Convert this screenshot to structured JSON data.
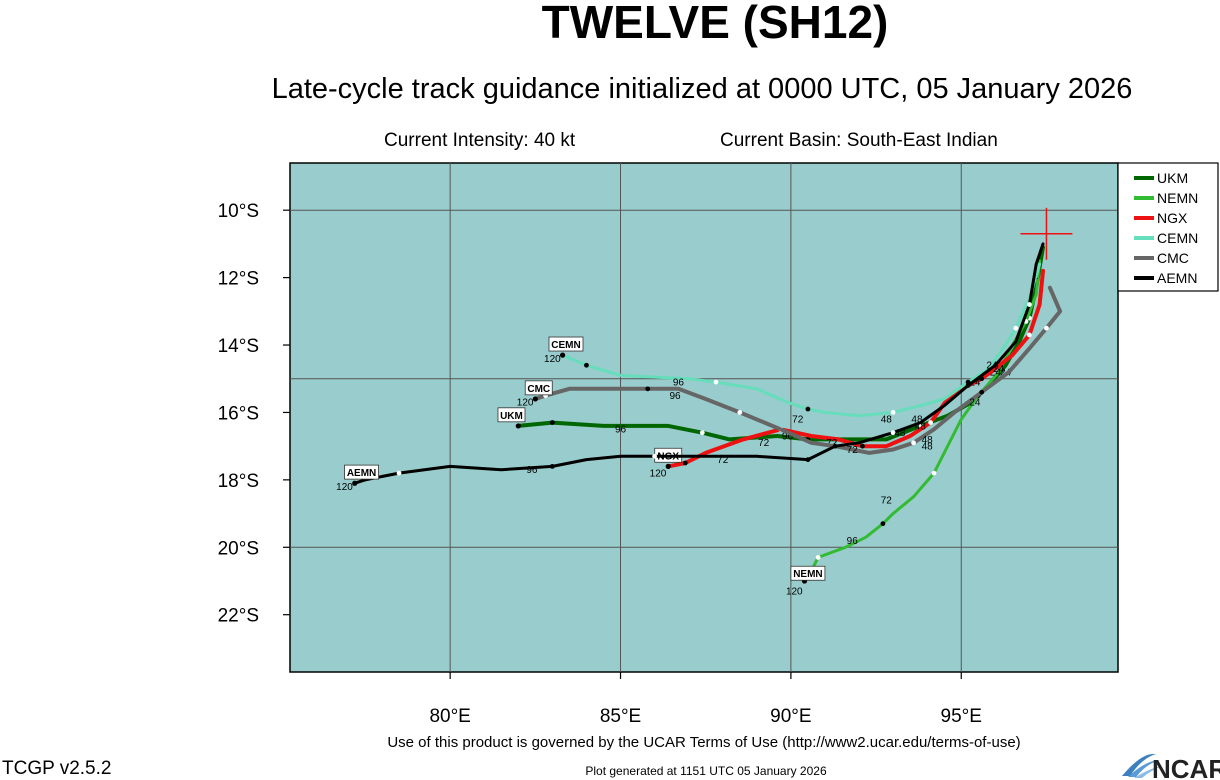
{
  "header": {
    "title": "TWELVE (SH12)",
    "subtitle": "Late-cycle track guidance initialized at 0000 UTC, 05 January 2026",
    "intensity": "Current Intensity: 40 kt",
    "basin": "Current Basin: South-East Indian"
  },
  "map": {
    "background_color": "#99cccc",
    "lon_range": [
      75.3,
      99.6
    ],
    "lat_range": [
      -23.7,
      -8.6
    ],
    "lon_ticks": [
      {
        "value": 80,
        "label": "80°E"
      },
      {
        "value": 85,
        "label": "85°E"
      },
      {
        "value": 90,
        "label": "90°E"
      },
      {
        "value": 95,
        "label": "95°E"
      }
    ],
    "lat_ticks": [
      {
        "value": -10,
        "label": "10°S"
      },
      {
        "value": -12,
        "label": "12°S"
      },
      {
        "value": -14,
        "label": "14°S"
      },
      {
        "value": -16,
        "label": "16°S"
      },
      {
        "value": -18,
        "label": "18°S"
      },
      {
        "value": -20,
        "label": "20°S"
      },
      {
        "value": -22,
        "label": "22°S"
      }
    ],
    "grid_lons": [
      80,
      85,
      90,
      95
    ],
    "grid_lats": [
      -10,
      -15,
      -20
    ],
    "current_position": {
      "lon": 97.5,
      "lat": -10.7
    },
    "storm_glyph": {
      "lon": 97.2,
      "lat": -12.2
    }
  },
  "legend": {
    "items": [
      {
        "name": "UKM",
        "color": "#006600"
      },
      {
        "name": "NEMN",
        "color": "#33bb33"
      },
      {
        "name": "NGX",
        "color": "#ee1111"
      },
      {
        "name": "CEMN",
        "color": "#66ddbb"
      },
      {
        "name": "CMC",
        "color": "#666666"
      },
      {
        "name": "AEMN",
        "color": "#000000"
      }
    ]
  },
  "chart_data": {
    "type": "line",
    "x_label": "",
    "y_label": "",
    "series": [
      {
        "name": "UKM",
        "color": "#006600",
        "width": 4,
        "points": [
          [
            97.4,
            -11.1
          ],
          [
            97.2,
            -12.3
          ],
          [
            97.0,
            -13.2
          ],
          [
            96.7,
            -13.9
          ],
          [
            96.3,
            -14.6
          ],
          [
            95.8,
            -15.2
          ],
          [
            95.3,
            -15.7
          ],
          [
            94.6,
            -16.1
          ],
          [
            93.8,
            -16.4
          ],
          [
            92.8,
            -16.8
          ],
          [
            91.6,
            -16.8
          ],
          [
            90.5,
            -16.8
          ],
          [
            89.6,
            -16.7
          ],
          [
            88.2,
            -16.8
          ],
          [
            87.4,
            -16.6
          ],
          [
            86.4,
            -16.4
          ],
          [
            84.5,
            -16.4
          ],
          [
            83.0,
            -16.3
          ],
          [
            82.0,
            -16.4
          ]
        ],
        "labels": [
          {
            "text": "24",
            "lon": 96.3,
            "lat": -14.9
          },
          {
            "text": "48",
            "lon": 93.7,
            "lat": -16.3
          },
          {
            "text": "72",
            "lon": 89.2,
            "lat": -17.0
          },
          {
            "text": "96",
            "lon": 85.0,
            "lat": -16.6
          }
        ],
        "end_label": {
          "text": "UKM",
          "lon": 81.8,
          "lat": -16.1
        },
        "end_num": {
          "text": "",
          "lon": 0,
          "lat": 0
        }
      },
      {
        "name": "NEMN",
        "color": "#33bb33",
        "width": 3,
        "points": [
          [
            97.3,
            -11.5
          ],
          [
            97.2,
            -12.5
          ],
          [
            96.9,
            -13.3
          ],
          [
            96.5,
            -14.0
          ],
          [
            96.1,
            -14.8
          ],
          [
            95.5,
            -15.5
          ],
          [
            95.0,
            -16.2
          ],
          [
            94.6,
            -17.0
          ],
          [
            94.2,
            -17.8
          ],
          [
            93.6,
            -18.5
          ],
          [
            93.0,
            -19.0
          ],
          [
            92.7,
            -19.3
          ],
          [
            92.2,
            -19.7
          ],
          [
            91.6,
            -20.0
          ],
          [
            90.8,
            -20.3
          ],
          [
            90.6,
            -20.7
          ],
          [
            90.4,
            -21.0
          ]
        ],
        "labels": [
          {
            "text": "24",
            "lon": 96.0,
            "lat": -14.9
          },
          {
            "text": "48",
            "lon": 94.0,
            "lat": -17.1
          },
          {
            "text": "72",
            "lon": 92.8,
            "lat": -18.7
          },
          {
            "text": "96",
            "lon": 91.8,
            "lat": -19.9
          }
        ],
        "end_label": {
          "text": "NEMN",
          "lon": 90.5,
          "lat": -20.8
        },
        "end_num": {
          "text": "120",
          "lon": 90.1,
          "lat": -21.4
        }
      },
      {
        "name": "NGX",
        "color": "#ee1111",
        "width": 4,
        "points": [
          [
            97.4,
            -11.8
          ],
          [
            97.3,
            -12.8
          ],
          [
            97.0,
            -13.7
          ],
          [
            96.5,
            -14.3
          ],
          [
            96.0,
            -14.7
          ],
          [
            95.6,
            -15.0
          ],
          [
            95.0,
            -15.3
          ],
          [
            94.6,
            -15.6
          ],
          [
            94.1,
            -16.3
          ],
          [
            93.5,
            -16.7
          ],
          [
            92.8,
            -17.0
          ],
          [
            92.1,
            -17.0
          ],
          [
            91.4,
            -16.8
          ],
          [
            90.6,
            -16.7
          ],
          [
            89.7,
            -16.5
          ],
          [
            88.6,
            -16.8
          ],
          [
            87.5,
            -17.2
          ],
          [
            86.9,
            -17.5
          ],
          [
            86.4,
            -17.6
          ]
        ],
        "labels": [
          {
            "text": "24",
            "lon": 95.4,
            "lat": -15.2
          },
          {
            "text": "48",
            "lon": 93.8,
            "lat": -16.5
          },
          {
            "text": "72",
            "lon": 91.2,
            "lat": -17.0
          },
          {
            "text": "96",
            "lon": 89.9,
            "lat": -16.8
          }
        ],
        "end_label": {
          "text": "NGX",
          "lon": 86.4,
          "lat": -17.3
        },
        "end_num": {
          "text": "120",
          "lon": 86.1,
          "lat": -17.9
        }
      },
      {
        "name": "CEMN",
        "color": "#66ddbb",
        "width": 3,
        "points": [
          [
            97.3,
            -11.6
          ],
          [
            97.0,
            -12.6
          ],
          [
            96.6,
            -13.5
          ],
          [
            96.3,
            -14.0
          ],
          [
            95.8,
            -14.7
          ],
          [
            95.2,
            -15.1
          ],
          [
            94.5,
            -15.6
          ],
          [
            93.8,
            -15.8
          ],
          [
            93.0,
            -16.0
          ],
          [
            92.0,
            -16.1
          ],
          [
            91.0,
            -16.0
          ],
          [
            90.5,
            -15.9
          ],
          [
            89.9,
            -15.7
          ],
          [
            89.0,
            -15.3
          ],
          [
            87.8,
            -15.1
          ],
          [
            87.0,
            -15.0
          ],
          [
            85.0,
            -14.9
          ],
          [
            84.0,
            -14.6
          ],
          [
            83.3,
            -14.3
          ]
        ],
        "labels": [
          {
            "text": "24",
            "lon": 95.9,
            "lat": -14.7
          },
          {
            "text": "48",
            "lon": 92.8,
            "lat": -16.3
          },
          {
            "text": "72",
            "lon": 90.2,
            "lat": -16.3
          },
          {
            "text": "96",
            "lon": 86.7,
            "lat": -15.2
          }
        ],
        "end_label": {
          "text": "CEMN",
          "lon": 83.4,
          "lat": -14.0
        },
        "end_num": {
          "text": "120",
          "lon": 83.0,
          "lat": -14.5
        }
      },
      {
        "name": "CMC",
        "color": "#666666",
        "width": 4,
        "points": [
          [
            97.6,
            -12.3
          ],
          [
            97.9,
            -13.0
          ],
          [
            97.5,
            -13.5
          ],
          [
            97.0,
            -14.1
          ],
          [
            96.4,
            -14.8
          ],
          [
            95.6,
            -15.4
          ],
          [
            94.8,
            -16.0
          ],
          [
            94.2,
            -16.5
          ],
          [
            93.6,
            -16.9
          ],
          [
            93.0,
            -17.1
          ],
          [
            92.3,
            -17.2
          ],
          [
            91.3,
            -17.0
          ],
          [
            90.6,
            -16.9
          ],
          [
            89.7,
            -16.5
          ],
          [
            88.5,
            -16.0
          ],
          [
            87.5,
            -15.6
          ],
          [
            86.7,
            -15.3
          ],
          [
            85.8,
            -15.3
          ],
          [
            84.5,
            -15.3
          ],
          [
            83.5,
            -15.3
          ],
          [
            82.8,
            -15.5
          ],
          [
            82.5,
            -15.6
          ]
        ],
        "labels": [
          {
            "text": "24",
            "lon": 95.4,
            "lat": -15.8
          },
          {
            "text": "48",
            "lon": 94.0,
            "lat": -16.9
          },
          {
            "text": "72",
            "lon": 91.8,
            "lat": -17.2
          },
          {
            "text": "96",
            "lon": 86.6,
            "lat": -15.6
          }
        ],
        "end_label": {
          "text": "CMC",
          "lon": 82.6,
          "lat": -15.3
        },
        "end_num": {
          "text": "120",
          "lon": 82.2,
          "lat": -15.8
        }
      },
      {
        "name": "AEMN",
        "color": "#000000",
        "width": 3,
        "points": [
          [
            97.4,
            -11.0
          ],
          [
            97.2,
            -11.6
          ],
          [
            97.0,
            -12.8
          ],
          [
            96.6,
            -13.9
          ],
          [
            96.0,
            -14.6
          ],
          [
            95.2,
            -15.2
          ],
          [
            94.5,
            -15.8
          ],
          [
            93.8,
            -16.3
          ],
          [
            93.0,
            -16.6
          ],
          [
            92.0,
            -16.9
          ],
          [
            91.3,
            -17.0
          ],
          [
            90.5,
            -17.4
          ],
          [
            89.0,
            -17.3
          ],
          [
            87.5,
            -17.3
          ],
          [
            86.0,
            -17.3
          ],
          [
            85.0,
            -17.3
          ],
          [
            84.0,
            -17.4
          ],
          [
            83.0,
            -17.6
          ],
          [
            81.5,
            -17.7
          ],
          [
            80.0,
            -17.6
          ],
          [
            78.5,
            -17.8
          ],
          [
            77.5,
            -18.0
          ],
          [
            77.2,
            -18.1
          ]
        ],
        "labels": [
          {
            "text": "24",
            "lon": 96.1,
            "lat": -14.8
          },
          {
            "text": "48",
            "lon": 93.2,
            "lat": -16.7
          },
          {
            "text": "72",
            "lon": 88.0,
            "lat": -17.5
          },
          {
            "text": "96",
            "lon": 82.4,
            "lat": -17.8
          }
        ],
        "end_label": {
          "text": "AEMN",
          "lon": 77.4,
          "lat": -17.8
        },
        "end_num": {
          "text": "120",
          "lon": 76.9,
          "lat": -18.3
        }
      }
    ]
  },
  "footer": {
    "terms": "Use of this product is governed by the UCAR Terms of Use (http://www2.ucar.edu/terms-of-use)",
    "version": "TCGP v2.5.2",
    "generated": "Plot generated at 1151 UTC   05 January 2026",
    "logo": "NCAR"
  }
}
